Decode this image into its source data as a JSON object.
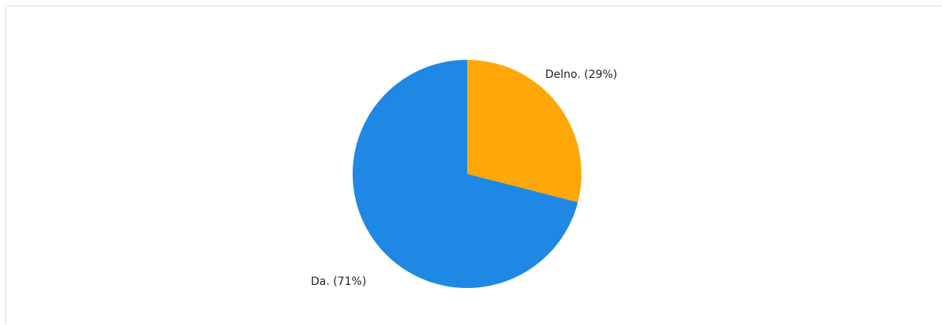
{
  "chart_data": {
    "type": "pie",
    "title": "",
    "slices": [
      {
        "label": "Delno. (29%)",
        "value": 29,
        "color": "#FFA708"
      },
      {
        "label": "Da. (71%)",
        "value": 71,
        "color": "#1F88E5"
      }
    ],
    "legend": "none"
  }
}
